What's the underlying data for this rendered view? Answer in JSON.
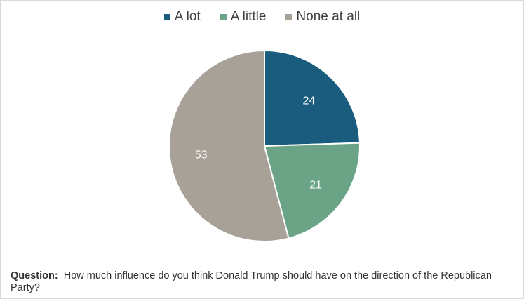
{
  "chart_data": {
    "type": "pie",
    "categories": [
      "A lot",
      "A little",
      "None at all"
    ],
    "values": [
      24,
      21,
      53
    ],
    "colors": [
      "#1a5c7e",
      "#6ba387",
      "#a8a197"
    ],
    "legend_position": "top"
  },
  "note": {
    "question_label": "Question:",
    "question_text": "How much influence do you think Donald Trump should have on the direction of the Republican Party?"
  }
}
